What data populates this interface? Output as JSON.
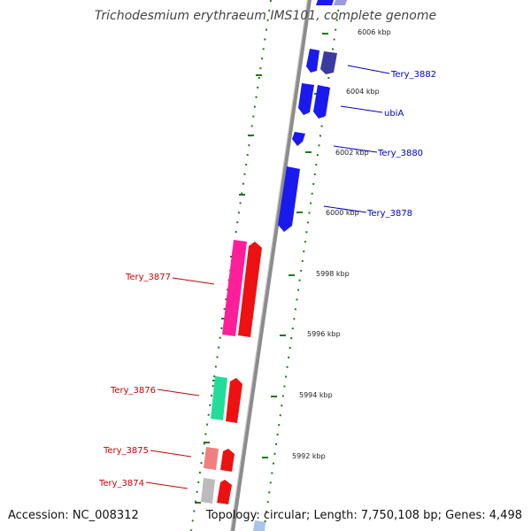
{
  "title": "Trichodesmium erythraeum IMS101, complete genome",
  "accession": "Accession: NC_008312",
  "topology": "Topology: circular; Length: 7,750,108 bp; Genes: 4,498",
  "colors": {
    "forward_label": "#cc0000",
    "reverse_label": "#0000cc",
    "backbone": "#8c8c8c",
    "ticks": "#1a7a1a"
  },
  "scale": {
    "ticks": [
      {
        "label": "6006 kbp",
        "kbp": 6006
      },
      {
        "label": "6004 kbp",
        "kbp": 6004
      },
      {
        "label": "6002 kbp",
        "kbp": 6002
      },
      {
        "label": "6000 kbp",
        "kbp": 6000
      },
      {
        "label": "5998 kbp",
        "kbp": 5998
      },
      {
        "label": "5996 kbp",
        "kbp": 5996
      },
      {
        "label": "5994 kbp",
        "kbp": 5994
      },
      {
        "label": "5992 kbp",
        "kbp": 5992
      }
    ]
  },
  "gene_labels": [
    {
      "text": "Tery_3882",
      "strand": "reverse"
    },
    {
      "text": "ubiA",
      "strand": "reverse"
    },
    {
      "text": "Tery_3880",
      "strand": "reverse"
    },
    {
      "text": "Tery_3878",
      "strand": "reverse"
    },
    {
      "text": "Tery_3877",
      "strand": "forward"
    },
    {
      "text": "Tery_3876",
      "strand": "forward"
    },
    {
      "text": "Tery_3875",
      "strand": "forward"
    },
    {
      "text": "Tery_3874",
      "strand": "forward"
    }
  ]
}
